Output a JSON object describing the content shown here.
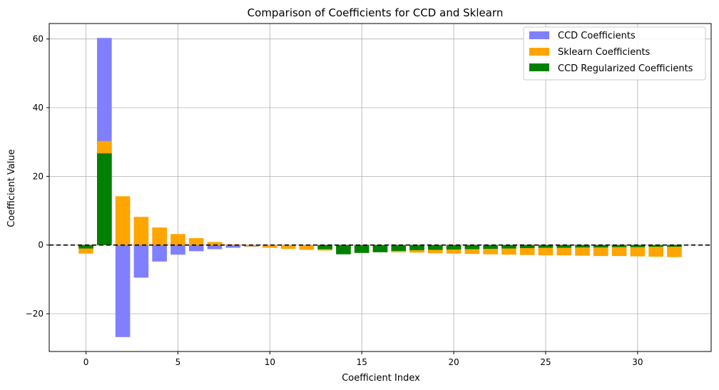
{
  "chart_data": {
    "type": "bar",
    "title": "Comparison of Coefficients for CCD and Sklearn",
    "xlabel": "Coefficient Index",
    "ylabel": "Coefficient Value",
    "xlim": [
      -2,
      34
    ],
    "ylim": [
      -31,
      64.5
    ],
    "xticks": [
      0,
      5,
      10,
      15,
      20,
      25,
      30
    ],
    "yticks": [
      -20,
      0,
      20,
      40,
      60
    ],
    "grid": true,
    "legend_position": "top-right",
    "reference_line": {
      "y": 0,
      "style": "dashed",
      "color": "#000000"
    },
    "x": [
      0,
      1,
      2,
      3,
      4,
      5,
      6,
      7,
      8,
      9,
      10,
      11,
      12,
      13,
      14,
      15,
      16,
      17,
      18,
      19,
      20,
      21,
      22,
      23,
      24,
      25,
      26,
      27,
      28,
      29,
      30,
      31,
      32
    ],
    "series": [
      {
        "name": "CCD Coefficients",
        "color": "#8080ff",
        "values": [
          -0.3,
          60.3,
          -26.8,
          -9.5,
          -4.8,
          -2.8,
          -1.8,
          -1.2,
          -0.8,
          -0.5,
          -0.3,
          -0.2,
          -0.1,
          -0.1,
          -0.1,
          -0.1,
          -0.1,
          -0.1,
          -0.1,
          -0.1,
          -0.1,
          -0.1,
          -0.1,
          -0.1,
          -0.1,
          -0.1,
          -0.1,
          -0.1,
          -0.1,
          -0.1,
          -0.1,
          -0.1,
          -0.1
        ]
      },
      {
        "name": "Sklearn Coefficients",
        "color": "#ffa500",
        "values": [
          -2.5,
          30.3,
          14.2,
          8.2,
          5.1,
          3.2,
          2.0,
          0.9,
          0.2,
          -0.4,
          -0.8,
          -1.1,
          -1.4,
          -1.6,
          -1.8,
          -1.9,
          -2.0,
          -2.1,
          -2.2,
          -2.4,
          -2.5,
          -2.6,
          -2.7,
          -2.8,
          -2.9,
          -3.0,
          -3.0,
          -3.1,
          -3.2,
          -3.2,
          -3.3,
          -3.4,
          -3.5
        ]
      },
      {
        "name": "CCD Regularized Coefficients",
        "color": "#008000",
        "values": [
          -1.0,
          26.7,
          0,
          0,
          0,
          0,
          0,
          0,
          0,
          0,
          0,
          0,
          0,
          -1.2,
          -2.7,
          -2.3,
          -2.1,
          -1.7,
          -1.5,
          -1.4,
          -1.3,
          -1.2,
          -1.1,
          -1.0,
          -0.9,
          -0.8,
          -0.8,
          -0.7,
          -0.7,
          -0.6,
          -0.6,
          -0.5,
          -0.5
        ]
      }
    ]
  }
}
